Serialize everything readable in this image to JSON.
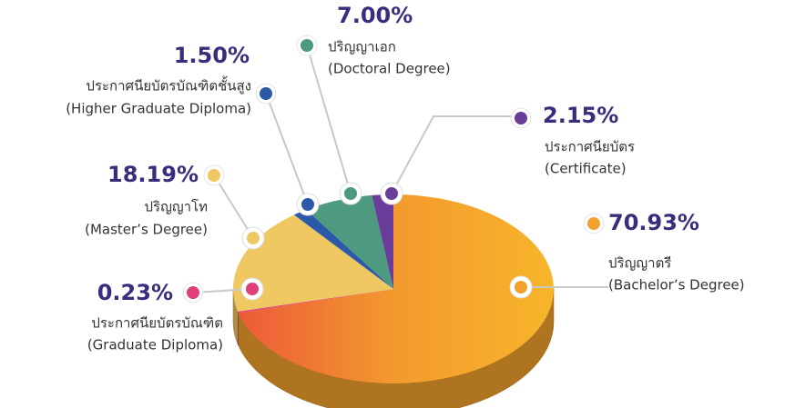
{
  "chart_data": {
    "type": "pie",
    "categories": [
      "ปริญญาตรี",
      "ประกาศนียบัตรบัณฑิต",
      "ปริญญาโท",
      "ประกาศนียบัตรบัณฑิตชั้นสูง",
      "ปริญญาเอก",
      "ประกาศนียบัตร"
    ],
    "categories_en": [
      "(Bachelor’s Degree)",
      "(Graduate Diploma)",
      "(Master’s Degree)",
      "(Higher Graduate Diploma)",
      "(Doctoral Degree)",
      "(Certificate)"
    ],
    "values": [
      70.93,
      0.23,
      18.19,
      1.5,
      7.0,
      2.15
    ],
    "value_labels": [
      "70.93%",
      "0.23%",
      "18.19%",
      "1.50%",
      "7.00%",
      "2.15%"
    ],
    "colors": [
      "#f3a12c",
      "#e0407a",
      "#f0c862",
      "#2b5aa8",
      "#4d9a80",
      "#6a3d9a"
    ]
  }
}
